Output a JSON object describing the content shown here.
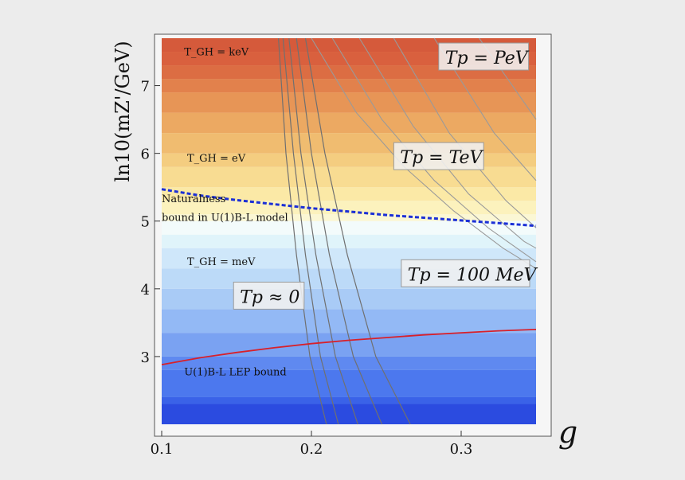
{
  "chart_data": {
    "type": "area",
    "xlabel": "g",
    "ylabel": "ln10(mZ'/GeV)",
    "xlim": [
      0.1,
      0.35
    ],
    "ylim": [
      2.0,
      7.7
    ],
    "x_ticks": [
      "0.1",
      "0.2",
      "0.3"
    ],
    "y_ticks": [
      "3",
      "4",
      "5",
      "6",
      "7"
    ],
    "grid": false,
    "background_bands": {
      "y_values": [
        2.0,
        2.3,
        2.4,
        2.8,
        3.0,
        3.35,
        3.7,
        4.0,
        4.3,
        4.6,
        4.8,
        5.0,
        5.1,
        5.3,
        5.5,
        5.8,
        6.0,
        6.3,
        6.6,
        6.9,
        7.1,
        7.3,
        7.5,
        7.7
      ],
      "colors": [
        "#2b4be0",
        "#3a62e8",
        "#4c78ee",
        "#5f89f0",
        "#7aa2f2",
        "#93b9f5",
        "#a9cbf6",
        "#bcdaf8",
        "#cfe7fa",
        "#e0f4fa",
        "#f3fbfb",
        "#fbf7d4",
        "#fcf2bd",
        "#fbe9a6",
        "#f8dc92",
        "#f4cd80",
        "#f0bc70",
        "#eca962",
        "#e79556",
        "#e2814c",
        "#dc6d43",
        "#d9603e",
        "#d55a3b"
      ]
    },
    "series": [
      {
        "name": "Naturalness bound in U(1)B-L model",
        "color": "#1b2fd6",
        "style": "dashed",
        "x": [
          0.1,
          0.125,
          0.15,
          0.175,
          0.2,
          0.225,
          0.25,
          0.275,
          0.3,
          0.325,
          0.35
        ],
        "y": [
          5.47,
          5.38,
          5.31,
          5.25,
          5.19,
          5.14,
          5.09,
          5.05,
          5.01,
          4.97,
          4.93
        ]
      },
      {
        "name": "U(1)B-L LEP bound",
        "color": "#d8202a",
        "style": "solid",
        "x": [
          0.1,
          0.125,
          0.15,
          0.175,
          0.2,
          0.225,
          0.25,
          0.275,
          0.3,
          0.325,
          0.35
        ],
        "y": [
          2.88,
          2.98,
          3.06,
          3.13,
          3.19,
          3.24,
          3.28,
          3.32,
          3.35,
          3.38,
          3.4
        ]
      }
    ],
    "contours_steep": {
      "color": "#707070",
      "lines": [
        {
          "x": [
            0.178,
            0.183,
            0.19,
            0.199,
            0.21
          ],
          "y": [
            7.7,
            6.0,
            4.5,
            3.0,
            2.0
          ]
        },
        {
          "x": [
            0.181,
            0.188,
            0.196,
            0.206,
            0.218
          ],
          "y": [
            7.7,
            6.0,
            4.5,
            3.0,
            2.0
          ]
        },
        {
          "x": [
            0.185,
            0.193,
            0.203,
            0.216,
            0.231
          ],
          "y": [
            7.7,
            6.0,
            4.5,
            3.0,
            2.0
          ]
        },
        {
          "x": [
            0.19,
            0.2,
            0.212,
            0.228,
            0.247
          ],
          "y": [
            7.7,
            6.0,
            4.5,
            3.0,
            2.0
          ]
        },
        {
          "x": [
            0.196,
            0.209,
            0.224,
            0.243,
            0.266
          ],
          "y": [
            7.7,
            6.0,
            4.5,
            3.0,
            2.0
          ]
        }
      ]
    },
    "contours_curved": {
      "color": "#9a9a9a",
      "lines": [
        {
          "x": [
            0.2,
            0.23,
            0.262,
            0.295,
            0.328,
            0.35
          ],
          "y": [
            7.7,
            6.6,
            5.8,
            5.15,
            4.6,
            4.3
          ]
        },
        {
          "x": [
            0.214,
            0.247,
            0.282,
            0.318,
            0.35
          ],
          "y": [
            7.7,
            6.5,
            5.6,
            4.9,
            4.4
          ]
        },
        {
          "x": [
            0.232,
            0.268,
            0.305,
            0.342,
            0.35
          ],
          "y": [
            7.7,
            6.4,
            5.4,
            4.7,
            4.6
          ]
        },
        {
          "x": [
            0.255,
            0.292,
            0.33,
            0.35
          ],
          "y": [
            7.7,
            6.3,
            5.3,
            4.9
          ]
        },
        {
          "x": [
            0.282,
            0.322,
            0.35
          ],
          "y": [
            7.7,
            6.3,
            5.6
          ]
        },
        {
          "x": [
            0.312,
            0.35
          ],
          "y": [
            7.7,
            6.5
          ]
        }
      ]
    },
    "annotations": [
      {
        "text": "T_GH = keV",
        "x": 0.115,
        "y": 7.45
      },
      {
        "text": "T_GH = eV",
        "x": 0.117,
        "y": 5.88
      },
      {
        "text": "T_GH = meV",
        "x": 0.117,
        "y": 4.35
      },
      {
        "text": "Naturalness",
        "x": 0.1,
        "y": 5.28
      },
      {
        "text": "bound in U(1)B-L model",
        "x": 0.1,
        "y": 5.0
      },
      {
        "text": "U(1)B-L LEP bound",
        "x": 0.115,
        "y": 2.72
      }
    ],
    "callouts": [
      {
        "text": "Tp = PeV",
        "x": 0.285,
        "y": 7.3
      },
      {
        "text": "Tp = TeV",
        "x": 0.255,
        "y": 5.83
      },
      {
        "text": "Tp = 100 MeV",
        "x": 0.26,
        "y": 4.1
      },
      {
        "text": "Tp ≈ 0",
        "x": 0.148,
        "y": 3.77
      }
    ]
  }
}
